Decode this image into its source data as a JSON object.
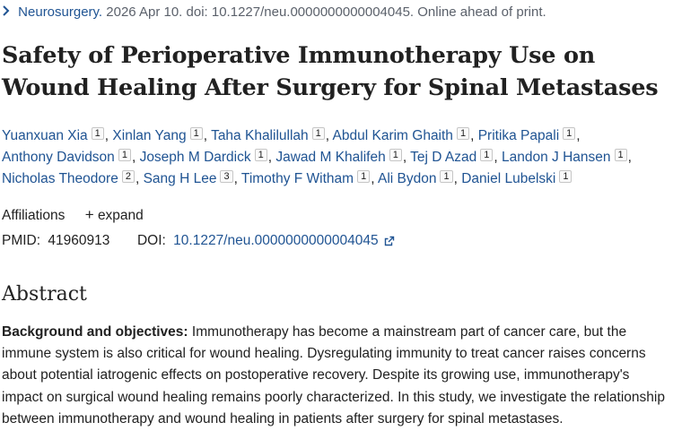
{
  "citation": {
    "journal": "Neurosurgery.",
    "details": "2026 Apr 10. doi: 10.1227/neu.0000000000004045. Online ahead of print."
  },
  "article": {
    "title": "Safety of Perioperative Immunotherapy Use on Wound Healing After Surgery for Spinal Metastases"
  },
  "authors": [
    {
      "name": "Yuanxuan Xia",
      "aff": "1"
    },
    {
      "name": "Xinlan Yang",
      "aff": "1"
    },
    {
      "name": "Taha Khalilullah",
      "aff": "1"
    },
    {
      "name": "Abdul Karim Ghaith",
      "aff": "1"
    },
    {
      "name": "Pritika Papali",
      "aff": "1"
    },
    {
      "name": "Anthony Davidson",
      "aff": "1"
    },
    {
      "name": "Joseph M Dardick",
      "aff": "1"
    },
    {
      "name": "Jawad M Khalifeh",
      "aff": "1"
    },
    {
      "name": "Tej D Azad",
      "aff": "1"
    },
    {
      "name": "Landon J Hansen",
      "aff": "1"
    },
    {
      "name": "Nicholas Theodore",
      "aff": "2"
    },
    {
      "name": "Sang H Lee",
      "aff": "3"
    },
    {
      "name": "Timothy F Witham",
      "aff": "1"
    },
    {
      "name": "Ali Bydon",
      "aff": "1"
    },
    {
      "name": "Daniel Lubelski",
      "aff": "1"
    }
  ],
  "affiliations": {
    "label": "Affiliations",
    "toggle_icon": "+",
    "toggle_label": "expand"
  },
  "ids": {
    "pmid_label": "PMID:",
    "pmid": "41960913",
    "doi_label": "DOI:",
    "doi": "10.1227/neu.0000000000004045"
  },
  "abstract": {
    "heading": "Abstract",
    "section_label": "Background and objectives:",
    "text": "Immunotherapy has become a mainstream part of cancer care, but the immune system is also critical for wound healing. Dysregulating immunity to treat cancer raises concerns about potential iatrogenic effects on postoperative recovery. Despite its growing use, immunotherapy's impact on surgical wound healing remains poorly characterized. In this study, we investigate the relationship between immunotherapy and wound healing in patients after surgery for spinal metastases."
  },
  "colors": {
    "link": "#205493",
    "text": "#212121",
    "muted": "#5b616b"
  },
  "icons": [
    "chevron-right-icon",
    "external-link-icon"
  ]
}
